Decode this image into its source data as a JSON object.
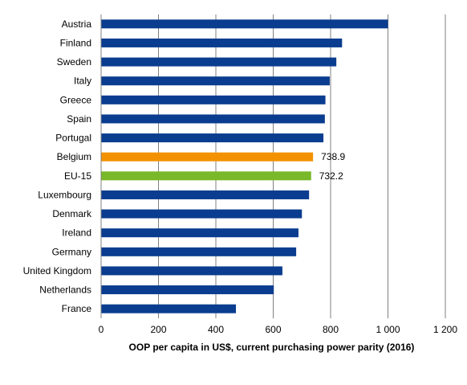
{
  "chart_data": {
    "type": "bar",
    "orientation": "horizontal",
    "categories": [
      "Austria",
      "Finland",
      "Sweden",
      "Italy",
      "Greece",
      "Spain",
      "Portugal",
      "Belgium",
      "EU-15",
      "Luxembourg",
      "Denmark",
      "Ireland",
      "Germany",
      "United Kingdom",
      "Netherlands",
      "France"
    ],
    "values": [
      1000,
      840,
      820,
      797,
      782,
      780,
      775,
      738.9,
      732.2,
      725,
      700,
      688,
      680,
      632,
      602,
      470
    ],
    "data_labels": {
      "Belgium": "738.9",
      "EU-15": "732.2"
    },
    "bar_colors": {
      "default": "#0a3d8f",
      "Belgium": "#f39200",
      "EU-15": "#79b829"
    },
    "xlabel": "OOP per capita in US$, current purchasing power parity (2016)",
    "ylabel": "",
    "xlim": [
      0,
      1200
    ],
    "x_ticks": [
      0,
      200,
      400,
      600,
      800,
      1000,
      1200
    ],
    "x_tick_labels": [
      "0",
      "200",
      "400",
      "600",
      "800",
      "1 000",
      "1 200"
    ],
    "grid": "vertical",
    "legend": "none"
  }
}
